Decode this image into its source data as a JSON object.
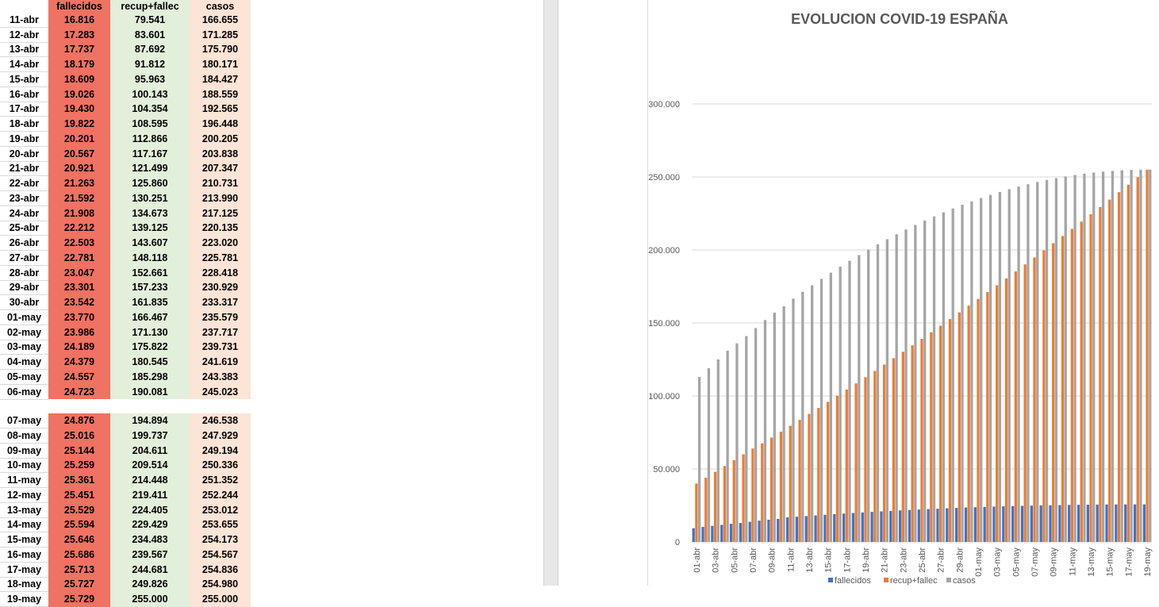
{
  "sheet": {
    "headers": {
      "fallecidos": "fallecidos",
      "recup": "recup+fallec",
      "casos": "casos"
    },
    "colors": {
      "fallecidos": "#f07262",
      "recup": "#e2efda",
      "casos": "#fce4d6"
    },
    "rows": [
      {
        "date": "11-abr",
        "f": "16.816",
        "r": "79.541",
        "c": "166.655"
      },
      {
        "date": "12-abr",
        "f": "17.283",
        "r": "83.601",
        "c": "171.285"
      },
      {
        "date": "13-abr",
        "f": "17.737",
        "r": "87.692",
        "c": "175.790"
      },
      {
        "date": "14-abr",
        "f": "18.179",
        "r": "91.812",
        "c": "180.171"
      },
      {
        "date": "15-abr",
        "f": "18.609",
        "r": "95.963",
        "c": "184.427"
      },
      {
        "date": "16-abr",
        "f": "19.026",
        "r": "100.143",
        "c": "188.559"
      },
      {
        "date": "17-abr",
        "f": "19.430",
        "r": "104.354",
        "c": "192.565"
      },
      {
        "date": "18-abr",
        "f": "19.822",
        "r": "108.595",
        "c": "196.448"
      },
      {
        "date": "19-abr",
        "f": "20.201",
        "r": "112.866",
        "c": "200.205"
      },
      {
        "date": "20-abr",
        "f": "20.567",
        "r": "117.167",
        "c": "203.838"
      },
      {
        "date": "21-abr",
        "f": "20.921",
        "r": "121.499",
        "c": "207.347"
      },
      {
        "date": "22-abr",
        "f": "21.263",
        "r": "125.860",
        "c": "210.731"
      },
      {
        "date": "23-abr",
        "f": "21.592",
        "r": "130.251",
        "c": "213.990"
      },
      {
        "date": "24-abr",
        "f": "21.908",
        "r": "134.673",
        "c": "217.125"
      },
      {
        "date": "25-abr",
        "f": "22.212",
        "r": "139.125",
        "c": "220.135"
      },
      {
        "date": "26-abr",
        "f": "22.503",
        "r": "143.607",
        "c": "223.020"
      },
      {
        "date": "27-abr",
        "f": "22.781",
        "r": "148.118",
        "c": "225.781"
      },
      {
        "date": "28-abr",
        "f": "23.047",
        "r": "152.661",
        "c": "228.418"
      },
      {
        "date": "29-abr",
        "f": "23.301",
        "r": "157.233",
        "c": "230.929"
      },
      {
        "date": "30-abr",
        "f": "23.542",
        "r": "161.835",
        "c": "233.317"
      },
      {
        "date": "01-may",
        "f": "23.770",
        "r": "166.467",
        "c": "235.579"
      },
      {
        "date": "02-may",
        "f": "23.986",
        "r": "171.130",
        "c": "237.717"
      },
      {
        "date": "03-may",
        "f": "24.189",
        "r": "175.822",
        "c": "239.731"
      },
      {
        "date": "04-may",
        "f": "24.379",
        "r": "180.545",
        "c": "241.619"
      },
      {
        "date": "05-may",
        "f": "24.557",
        "r": "185.298",
        "c": "243.383"
      },
      {
        "date": "06-may",
        "f": "24.723",
        "r": "190.081",
        "c": "245.023"
      },
      {
        "date": "07-may",
        "f": "24.876",
        "r": "194.894",
        "c": "246.538"
      },
      {
        "date": "08-may",
        "f": "25.016",
        "r": "199.737",
        "c": "247.929"
      },
      {
        "date": "09-may",
        "f": "25.144",
        "r": "204.611",
        "c": "249.194"
      },
      {
        "date": "10-may",
        "f": "25.259",
        "r": "209.514",
        "c": "250.336"
      },
      {
        "date": "11-may",
        "f": "25.361",
        "r": "214.448",
        "c": "251.352"
      },
      {
        "date": "12-may",
        "f": "25.451",
        "r": "219.411",
        "c": "252.244"
      },
      {
        "date": "13-may",
        "f": "25.529",
        "r": "224.405",
        "c": "253.012"
      },
      {
        "date": "14-may",
        "f": "25.594",
        "r": "229.429",
        "c": "253.655"
      },
      {
        "date": "15-may",
        "f": "25.646",
        "r": "234.483",
        "c": "254.173"
      },
      {
        "date": "16-may",
        "f": "25.686",
        "r": "239.567",
        "c": "254.567"
      },
      {
        "date": "17-may",
        "f": "25.713",
        "r": "244.681",
        "c": "254.836"
      },
      {
        "date": "18-may",
        "f": "25.727",
        "r": "249.826",
        "c": "254.980"
      },
      {
        "date": "19-may",
        "f": "25.729",
        "r": "255.000",
        "c": "255.000"
      }
    ]
  },
  "chart_data": {
    "type": "bar",
    "title": "EVOLUCION COVID-19 ESPAÑA",
    "xlabel": "",
    "ylabel": "",
    "ylim": [
      0,
      300000
    ],
    "yticks": [
      {
        "value": 0,
        "label": "0"
      },
      {
        "value": 50000,
        "label": "50.000"
      },
      {
        "value": 100000,
        "label": "100.000"
      },
      {
        "value": 150000,
        "label": "150.000"
      },
      {
        "value": 200000,
        "label": "200.000"
      },
      {
        "value": 250000,
        "label": "250.000"
      },
      {
        "value": 300000,
        "label": "300.000"
      }
    ],
    "grid": true,
    "legend_position": "bottom",
    "categories": [
      "01-abr",
      "02-abr",
      "03-abr",
      "04-abr",
      "05-abr",
      "06-abr",
      "07-abr",
      "08-abr",
      "09-abr",
      "10-abr",
      "11-abr",
      "12-abr",
      "13-abr",
      "14-abr",
      "15-abr",
      "16-abr",
      "17-abr",
      "18-abr",
      "19-abr",
      "20-abr",
      "21-abr",
      "22-abr",
      "23-abr",
      "24-abr",
      "25-abr",
      "26-abr",
      "27-abr",
      "28-abr",
      "29-abr",
      "30-abr",
      "01-may",
      "02-may",
      "03-may",
      "04-may",
      "05-may",
      "06-may",
      "07-may",
      "08-may",
      "09-may",
      "10-may",
      "11-may",
      "12-may",
      "13-may",
      "14-may",
      "15-may",
      "16-may",
      "17-may",
      "18-may",
      "19-may"
    ],
    "x_tick_labels": [
      "01-abr",
      "03-abr",
      "05-abr",
      "07-abr",
      "09-abr",
      "11-abr",
      "13-abr",
      "15-abr",
      "17-abr",
      "19-abr",
      "21-abr",
      "23-abr",
      "25-abr",
      "27-abr",
      "29-abr",
      "01-may",
      "03-may",
      "05-may",
      "07-may",
      "09-may",
      "11-may",
      "13-may",
      "15-may",
      "17-may",
      "19-may"
    ],
    "series": [
      {
        "name": "fallecidos",
        "color": "#4472c4",
        "values": [
          9400,
          10300,
          11000,
          11700,
          12400,
          13000,
          13800,
          14600,
          15200,
          15800,
          16816,
          17283,
          17737,
          18179,
          18609,
          19026,
          19430,
          19822,
          20201,
          20567,
          20921,
          21263,
          21592,
          21908,
          22212,
          22503,
          22781,
          23047,
          23301,
          23542,
          23770,
          23986,
          24189,
          24379,
          24557,
          24723,
          24876,
          25016,
          25144,
          25259,
          25361,
          25451,
          25529,
          25594,
          25646,
          25686,
          25713,
          25727,
          25729
        ]
      },
      {
        "name": "recup+fallec",
        "color": "#ed7d31",
        "values": [
          40000,
          44000,
          48000,
          52000,
          56000,
          60000,
          64000,
          67500,
          71500,
          75500,
          79541,
          83601,
          87692,
          91812,
          95963,
          100143,
          104354,
          108595,
          112866,
          117167,
          121499,
          125860,
          130251,
          134673,
          139125,
          143607,
          148118,
          152661,
          157233,
          161835,
          166467,
          171130,
          175822,
          180545,
          185298,
          190081,
          194894,
          199737,
          204611,
          209514,
          214448,
          219411,
          224405,
          229429,
          234483,
          239567,
          244681,
          249826,
          255000
        ]
      },
      {
        "name": "casos",
        "color": "#a5a5a5",
        "values": [
          113000,
          119000,
          125000,
          131000,
          136000,
          141000,
          146500,
          152000,
          157000,
          161500,
          166655,
          171285,
          175790,
          180171,
          184427,
          188559,
          192565,
          196448,
          200205,
          203838,
          207347,
          210731,
          213990,
          217125,
          220135,
          223020,
          225781,
          228418,
          230929,
          233317,
          235579,
          237717,
          239731,
          241619,
          243383,
          245023,
          246538,
          247929,
          249194,
          250336,
          251352,
          252244,
          253012,
          253655,
          254173,
          254567,
          254836,
          254980,
          255000
        ]
      }
    ]
  }
}
